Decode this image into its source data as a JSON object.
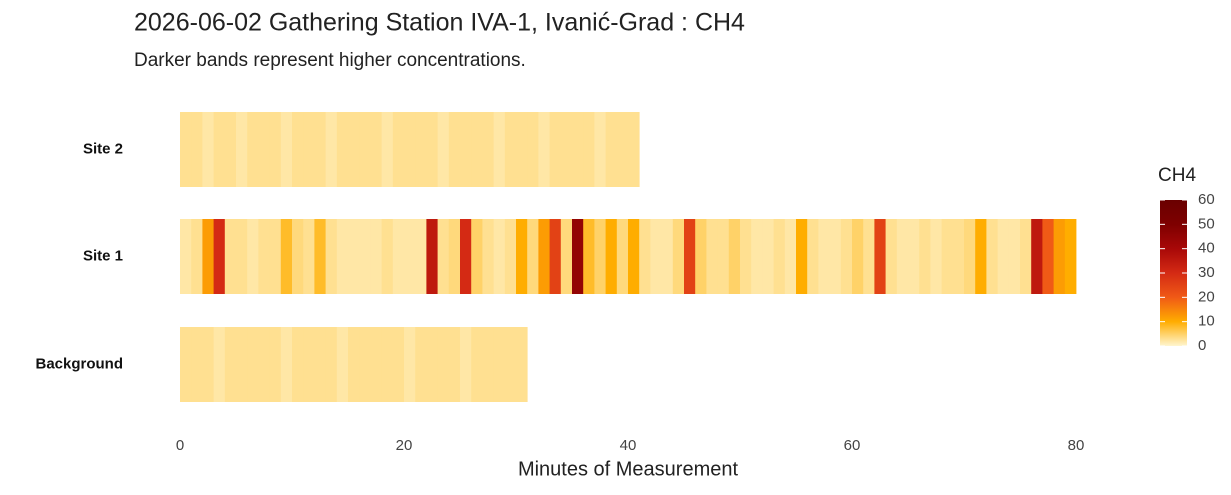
{
  "chart_data": {
    "type": "heatmap",
    "title": "2026-06-02 Gathering Station IVA-1, Ivanić-Grad : CH4",
    "subtitle": "Darker bands represent higher concentrations.",
    "x_label": "Minutes of Measurement",
    "xlim": [
      0,
      80
    ],
    "xticks": [
      0,
      20,
      40,
      60,
      80
    ],
    "legend_title": "CH4",
    "clim": [
      0,
      60
    ],
    "cticks": [
      0,
      10,
      20,
      30,
      40,
      50,
      60
    ],
    "colorscale": [
      "#fff6cf",
      "#ffad00",
      "#f05a16",
      "#d42a14",
      "#a80808",
      "#7e0000",
      "#6a0000"
    ],
    "series": [
      {
        "name": "Site 2",
        "bins": [
          0,
          1,
          2,
          3,
          4,
          5,
          6,
          7,
          8,
          9,
          10,
          11,
          12,
          13,
          14,
          15,
          16,
          17,
          18,
          19,
          20,
          21,
          22,
          23,
          24,
          25,
          26,
          27,
          28,
          29,
          30,
          31,
          32,
          33,
          34,
          35,
          36,
          37,
          38,
          39,
          40,
          41
        ],
        "values": [
          3,
          3,
          2,
          3,
          3,
          2,
          3,
          3,
          3,
          2,
          3,
          3,
          3,
          2,
          3,
          3,
          3,
          3,
          2,
          3,
          3,
          3,
          3,
          2,
          3,
          3,
          3,
          3,
          2,
          3,
          3,
          3,
          2,
          3,
          3,
          3,
          3,
          2,
          3,
          3,
          3
        ]
      },
      {
        "name": "Site 1",
        "bins": [
          0,
          1,
          2,
          3,
          4,
          5,
          6,
          7,
          8,
          9,
          10,
          11,
          12,
          13,
          14,
          15,
          16,
          17,
          18,
          19,
          20,
          21,
          22,
          23,
          24,
          25,
          26,
          27,
          28,
          29,
          30,
          31,
          32,
          33,
          34,
          35,
          36,
          37,
          38,
          39,
          40,
          41,
          42,
          43,
          44,
          45,
          46,
          47,
          48,
          49,
          50,
          51,
          52,
          53,
          54,
          55,
          56,
          57,
          58,
          59,
          60,
          61,
          62,
          63,
          64,
          65,
          66,
          67,
          68,
          69,
          70,
          71,
          72,
          73,
          74,
          75,
          76,
          77,
          78,
          79,
          80
        ],
        "values": [
          2,
          3,
          12,
          30,
          3,
          3,
          2,
          3,
          3,
          8,
          4,
          3,
          8,
          3,
          2,
          2,
          2,
          2,
          3,
          2,
          2,
          2,
          35,
          3,
          4,
          30,
          5,
          3,
          2,
          3,
          10,
          4,
          12,
          25,
          4,
          45,
          8,
          5,
          10,
          4,
          10,
          3,
          2,
          2,
          4,
          25,
          5,
          3,
          3,
          5,
          3,
          2,
          2,
          3,
          2,
          10,
          3,
          2,
          2,
          3,
          5,
          3,
          25,
          3,
          2,
          2,
          3,
          2,
          3,
          3,
          4,
          10,
          3,
          2,
          2,
          3,
          35,
          20,
          12,
          10
        ]
      },
      {
        "name": "Background",
        "bins": [
          0,
          1,
          2,
          3,
          4,
          5,
          6,
          7,
          8,
          9,
          10,
          11,
          12,
          13,
          14,
          15,
          16,
          17,
          18,
          19,
          20,
          21,
          22,
          23,
          24,
          25,
          26,
          27,
          28,
          29,
          30,
          31
        ],
        "values": [
          3,
          3,
          3,
          2,
          3,
          3,
          3,
          3,
          3,
          2,
          3,
          3,
          3,
          3,
          2,
          3,
          3,
          3,
          3,
          3,
          2,
          3,
          3,
          3,
          3,
          2,
          3,
          3,
          3,
          3,
          3
        ]
      }
    ]
  }
}
